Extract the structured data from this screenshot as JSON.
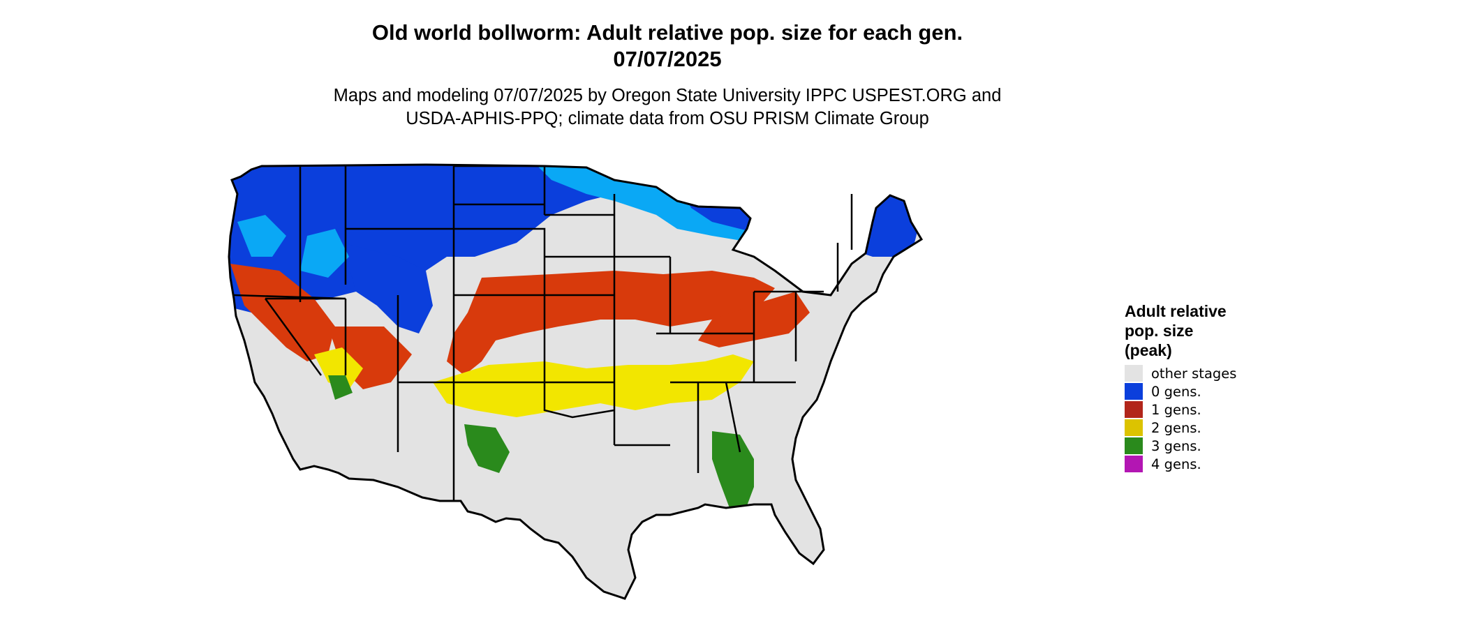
{
  "title_line1": "Old world bollworm: Adult relative pop. size for each gen.",
  "title_line2": "07/07/2025",
  "subtitle_line1": "Maps and modeling 07/07/2025 by Oregon State University IPPC USPEST.ORG and",
  "subtitle_line2": "USDA-APHIS-PPQ; climate data from OSU PRISM Climate Group",
  "legend": {
    "title_lines": [
      "Adult relative",
      "pop. size",
      "(peak)"
    ],
    "items": [
      {
        "label": "other stages",
        "color": "#e3e3e3"
      },
      {
        "label": "0 gens.",
        "color": "#0b3fdc"
      },
      {
        "label": "1 gens.",
        "color": "#b2261b"
      },
      {
        "label": "2 gens.",
        "color": "#dcc300"
      },
      {
        "label": "3 gens.",
        "color": "#2a8a1c"
      },
      {
        "label": "4 gens.",
        "color": "#b316b3"
      }
    ]
  },
  "map": {
    "region": "Contiguous United States",
    "colors": {
      "background": "#e3e3e3",
      "zero_gens": "#0b3fdc",
      "zero_gens_light": "#0aa8f5",
      "one_gen": "#d83a0c",
      "two_gens": "#f2e600",
      "three_gens": "#2a8a1c",
      "four_gens": "#b316b3",
      "border": "#000000"
    }
  }
}
